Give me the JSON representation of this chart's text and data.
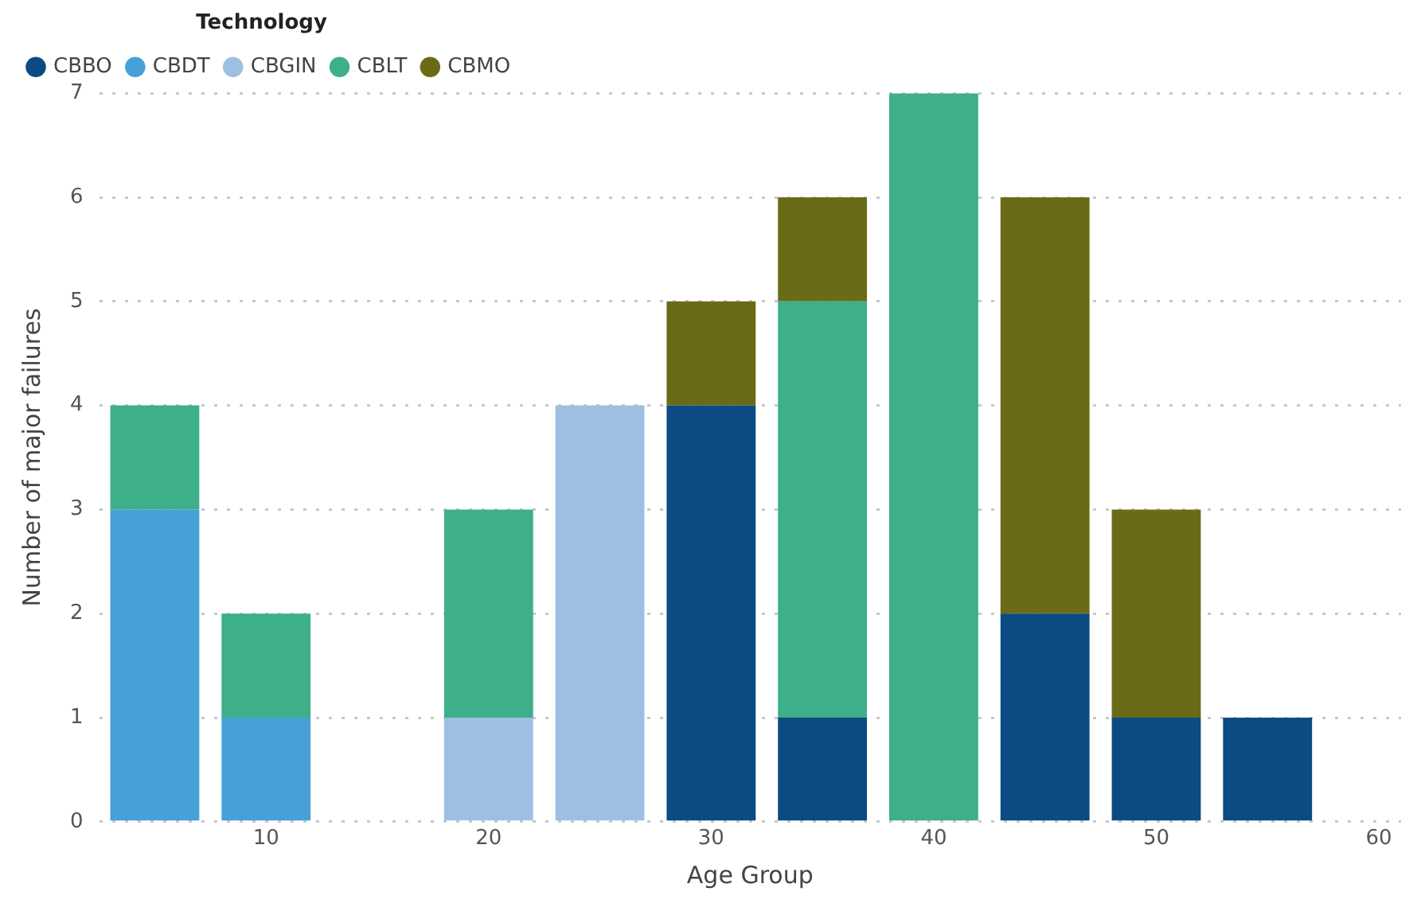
{
  "chart_data": {
    "type": "bar",
    "stacked": true,
    "xlabel": "Age Group",
    "ylabel": "Number of major failures",
    "legend_title": "Technology",
    "legend": "top left",
    "marker": "circle",
    "grid": "y",
    "x": [
      5,
      10,
      20,
      25,
      30,
      35,
      40,
      45,
      50,
      55
    ],
    "series": [
      {
        "name": "CBBO",
        "color": "#0b4a82",
        "values": [
          null,
          null,
          null,
          null,
          4,
          1,
          null,
          2,
          1,
          1
        ]
      },
      {
        "name": "CBDT",
        "color": "#47a0d8",
        "values": [
          3,
          1,
          null,
          null,
          null,
          null,
          null,
          null,
          null,
          null
        ]
      },
      {
        "name": "CBGIN",
        "color": "#9dc0e2",
        "values": [
          null,
          null,
          1,
          4,
          null,
          null,
          null,
          null,
          null,
          null
        ]
      },
      {
        "name": "CBLT",
        "color": "#3daf8a",
        "values": [
          1,
          1,
          2,
          null,
          null,
          4,
          7,
          null,
          null,
          null
        ]
      },
      {
        "name": "CBMO",
        "color": "#6b6b17",
        "values": [
          null,
          null,
          null,
          null,
          1,
          1,
          null,
          4,
          2,
          null
        ]
      }
    ],
    "xlim": [
      2.5,
      61
    ],
    "xticks": [
      10,
      20,
      30,
      40,
      50,
      60
    ],
    "ylim": [
      0,
      7
    ],
    "yticks": [
      0,
      1,
      2,
      3,
      4,
      5,
      6,
      7
    ]
  }
}
